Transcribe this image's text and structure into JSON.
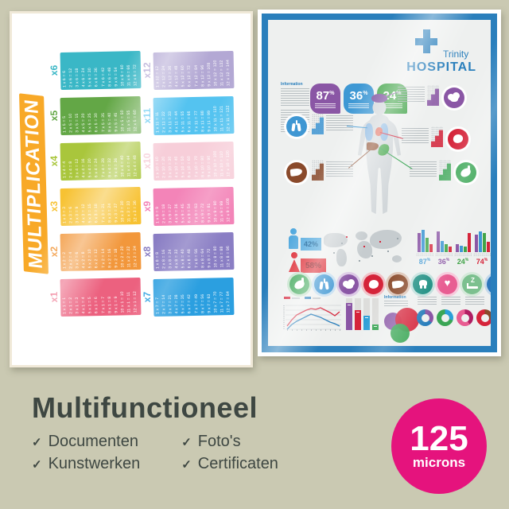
{
  "background_color": "#cac9b2",
  "footer": {
    "heading": "Multifunctioneel",
    "check_glyph": "✓",
    "features": [
      "Documenten",
      "Kunstwerken",
      "Foto's",
      "Certificaten"
    ],
    "badge": {
      "value": "125",
      "unit": "microns",
      "color": "#e5137d"
    }
  },
  "left_poster": {
    "title": "MULTIPLICATION",
    "banner_color": "#f8a928",
    "bands": [
      {
        "label": "x1",
        "color": "#ec617f",
        "equations": [
          "1 x 1 = 1",
          "2 x 1 = 2",
          "3 x 1 = 3",
          "4 x 1 = 4",
          "5 x 1 = 5",
          "6 x 1 = 6",
          "7 x 1 = 7",
          "8 x 1 = 8",
          "9 x 1 = 9",
          "10 x 1 = 10",
          "11 x 1 = 11",
          "12 x 1 = 12"
        ]
      },
      {
        "label": "x2",
        "color": "#f2973b",
        "equations": [
          "1 x 2 = 2",
          "2 x 2 = 4",
          "3 x 2 = 6",
          "4 x 2 = 8",
          "5 x 2 = 10",
          "6 x 2 = 12",
          "7 x 2 = 14",
          "8 x 2 = 16",
          "9 x 2 = 18",
          "10 x 2 = 20",
          "11 x 2 = 22",
          "12 x 2 = 24"
        ]
      },
      {
        "label": "x3",
        "color": "#f7c233",
        "equations": [
          "1 x 3 = 3",
          "2 x 3 = 6",
          "3 x 3 = 9",
          "4 x 3 = 12",
          "5 x 3 = 15",
          "6 x 3 = 18",
          "7 x 3 = 21",
          "8 x 3 = 24",
          "9 x 3 = 27",
          "10 x 3 = 30",
          "11 x 3 = 33",
          "12 x 3 = 36"
        ]
      },
      {
        "label": "x4",
        "color": "#a9c63c",
        "equations": [
          "1 x 4 = 4",
          "2 x 4 = 8",
          "3 x 4 = 12",
          "4 x 4 = 16",
          "5 x 4 = 20",
          "6 x 4 = 24",
          "7 x 4 = 28",
          "8 x 4 = 32",
          "9 x 4 = 36",
          "10 x 4 = 40",
          "11 x 4 = 44",
          "12 x 4 = 48"
        ]
      },
      {
        "label": "x5",
        "color": "#63a746",
        "equations": [
          "1 x 5 = 5",
          "2 x 5 = 10",
          "3 x 5 = 15",
          "4 x 5 = 20",
          "5 x 5 = 25",
          "6 x 5 = 30",
          "7 x 5 = 35",
          "8 x 5 = 40",
          "9 x 5 = 45",
          "10 x 5 = 50",
          "11 x 5 = 55",
          "12 x 5 = 60"
        ]
      },
      {
        "label": "x6",
        "color": "#3ab7c6",
        "equations": [
          "1 x 6 = 6",
          "2 x 6 = 12",
          "3 x 6 = 18",
          "4 x 6 = 24",
          "5 x 6 = 30",
          "6 x 6 = 36",
          "7 x 6 = 42",
          "8 x 6 = 48",
          "9 x 6 = 54",
          "10 x 6 = 60",
          "11 x 6 = 66",
          "12 x 6 = 72"
        ]
      },
      {
        "label": "x7",
        "color": "#2b9fe0",
        "equations": [
          "1 x 7 = 7",
          "2 x 7 = 14",
          "3 x 7 = 21",
          "4 x 7 = 28",
          "5 x 7 = 35",
          "6 x 7 = 42",
          "7 x 7 = 49",
          "8 x 7 = 56",
          "9 x 7 = 63",
          "10 x 7 = 70",
          "11 x 7 = 77",
          "12 x 7 = 84"
        ]
      },
      {
        "label": "x8",
        "color": "#8a7ec4",
        "equations": [
          "1 x 8 = 8",
          "2 x 8 = 16",
          "3 x 8 = 24",
          "4 x 8 = 32",
          "5 x 8 = 40",
          "6 x 8 = 48",
          "7 x 8 = 56",
          "8 x 8 = 64",
          "9 x 8 = 72",
          "10 x 8 = 80",
          "11 x 8 = 88",
          "12 x 8 = 96"
        ]
      },
      {
        "label": "x9",
        "color": "#f384b8",
        "equations": [
          "1 x 9 = 9",
          "2 x 9 = 18",
          "3 x 9 = 27",
          "4 x 9 = 36",
          "5 x 9 = 45",
          "6 x 9 = 54",
          "7 x 9 = 63",
          "8 x 9 = 72",
          "9 x 9 = 81",
          "10 x 9 = 90",
          "11 x 9 = 99",
          "12 x 9 = 108"
        ]
      },
      {
        "label": "x10",
        "color": "#f7ced9",
        "equations": [
          "1 x 10 = 10",
          "2 x 10 = 20",
          "3 x 10 = 30",
          "4 x 10 = 40",
          "5 x 10 = 50",
          "6 x 10 = 60",
          "7 x 10 = 70",
          "8 x 10 = 80",
          "9 x 10 = 90",
          "10 x 10 = 100",
          "11 x 10 = 110",
          "12 x 10 = 120"
        ]
      },
      {
        "label": "x11",
        "color": "#54c3f0",
        "equations": [
          "1 x 11 = 11",
          "2 x 11 = 22",
          "3 x 11 = 33",
          "4 x 11 = 44",
          "5 x 11 = 55",
          "6 x 11 = 66",
          "7 x 11 = 77",
          "8 x 11 = 88",
          "9 x 11 = 99",
          "10 x 11 = 110",
          "11 x 11 = 121",
          "12 x 11 = 132"
        ]
      },
      {
        "label": "x12",
        "color": "#b3a8d4",
        "equations": [
          "1 x 12 = 12",
          "2 x 12 = 24",
          "3 x 12 = 36",
          "4 x 12 = 48",
          "5 x 12 = 60",
          "6 x 12 = 72",
          "7 x 12 = 84",
          "8 x 12 = 96",
          "9 x 12 = 108",
          "10 x 12 = 120",
          "11 x 12 = 132",
          "12 x 12 = 144"
        ]
      }
    ]
  },
  "right_poster": {
    "brand": {
      "line1": "Trinity",
      "line2": "HOSPITAL",
      "color": "#2a7fbc"
    },
    "info_label": "Information",
    "info_label2": "Information",
    "stat_badges": [
      {
        "value": "87",
        "unit": "%",
        "color": "#8a56a5"
      },
      {
        "value": "36",
        "unit": "%",
        "color": "#3e98d4"
      },
      {
        "value": "24",
        "unit": "%",
        "color": "#41a448"
      }
    ],
    "gender": {
      "male_value": "42%",
      "male_color": "#52a9de",
      "male_text": "#0f5c94",
      "female_value": "58%",
      "female_color": "#dd2a33",
      "female_text": "#7e1218"
    },
    "bar_colors": [
      "#8a56a5",
      "#3e98d4",
      "#41a448",
      "#d5243a"
    ],
    "bar_groups": [
      {
        "label": "87",
        "unit": "%",
        "label_color": "#3e98d4",
        "heights": [
          24,
          28,
          18,
          10
        ]
      },
      {
        "label": "36",
        "unit": "%",
        "label_color": "#8a56a5",
        "heights": [
          26,
          14,
          10,
          7
        ]
      },
      {
        "label": "24",
        "unit": "%",
        "label_color": "#41a448",
        "heights": [
          10,
          8,
          7,
          24
        ]
      },
      {
        "label": "74",
        "unit": "%",
        "label_color": "#d5243a",
        "heights": [
          22,
          26,
          24,
          13
        ]
      }
    ],
    "callouts": [
      {
        "organ": "brain",
        "color": "#8a56a5"
      },
      {
        "organ": "heart-organ",
        "color": "#d5243a"
      },
      {
        "organ": "lungs",
        "color": "#3f97d3"
      },
      {
        "organ": "liver",
        "color": "#8a4a2b"
      },
      {
        "organ": "stomach",
        "color": "#3aa655"
      }
    ],
    "organ_icons": [
      {
        "name": "stomach",
        "color": "#3aa655",
        "ring": "#c4e2cb"
      },
      {
        "name": "lungs",
        "color": "#3f97d3",
        "ring": "#c6dff1"
      },
      {
        "name": "brain",
        "color": "#8a56a5",
        "ring": "#dcc9e6"
      },
      {
        "name": "heart-organ",
        "color": "#d5243a",
        "ring": "#f1c2c8"
      },
      {
        "name": "liver",
        "color": "#8a4a2b",
        "ring": "#ddc5b7"
      },
      {
        "name": "tooth",
        "color": "#12897c",
        "ring": "#bfdfdb"
      },
      {
        "name": "heart",
        "color": "#e85d92",
        "ring": "#f7cadc"
      },
      {
        "name": "sleep",
        "color": "#7cc08f",
        "ring": "#d5e9da"
      },
      {
        "name": "apple",
        "color": "#2d77bb",
        "ring": "#c3d8eb"
      }
    ],
    "line_chart": {
      "red_color": "#d5243a",
      "blue_color": "#2a7fbc",
      "red": [
        30,
        22,
        16,
        13,
        10,
        8,
        9,
        7,
        10,
        13,
        17,
        12
      ],
      "blue": [
        34,
        28,
        24,
        21,
        18,
        15,
        17,
        19,
        22,
        25,
        27,
        30
      ]
    },
    "column_bars": [
      {
        "color": "#8a56a5",
        "pct": 85
      },
      {
        "color": "#d5243a",
        "pct": 62
      },
      {
        "color": "#2d9fd6",
        "pct": 45
      },
      {
        "color": "#3aa655",
        "pct": 18
      }
    ],
    "bubbles": [
      {
        "color": "#8a56a5",
        "d": 22,
        "x": 0,
        "y": 6
      },
      {
        "color": "#d5243a",
        "d": 30,
        "x": 14,
        "y": 0
      },
      {
        "color": "#3aa655",
        "d": 24,
        "x": 8,
        "y": 20
      }
    ],
    "donuts": [
      {
        "base": "#2a7fbc",
        "seg": "#8a56a5",
        "seg_pct": 35
      },
      {
        "base": "#3aa655",
        "seg": "#2a9fd8",
        "seg_pct": 30
      },
      {
        "base": "#e85d92",
        "seg": "#b01e62",
        "seg_pct": 40
      },
      {
        "base": "#d5243a",
        "seg": "#8a4a2b",
        "seg_pct": 30
      }
    ]
  }
}
